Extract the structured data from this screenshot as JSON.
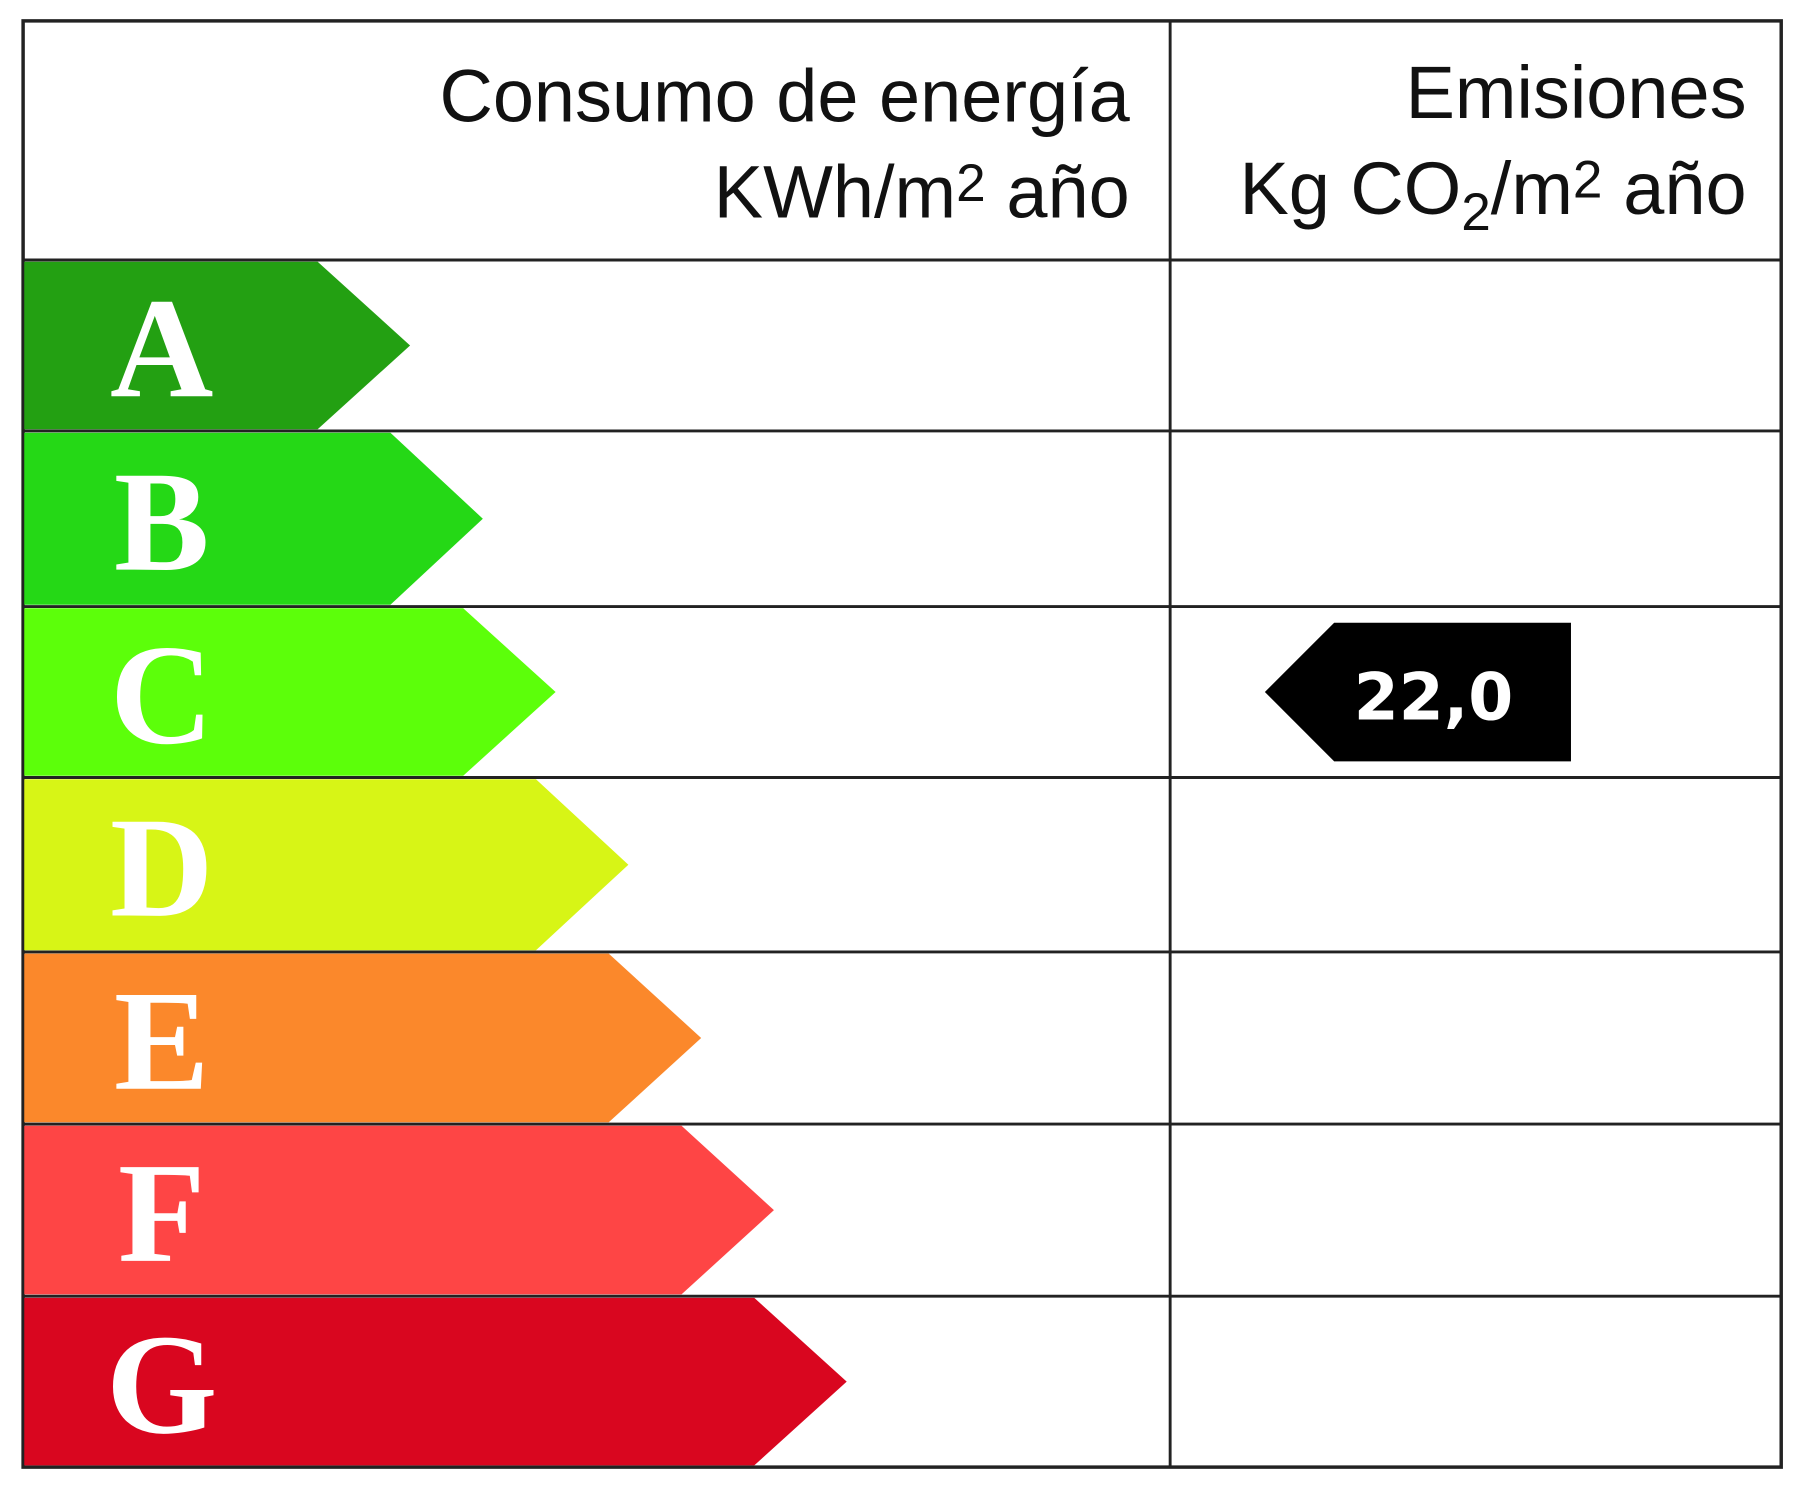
{
  "header": {
    "energy": {
      "title": "Consumo de energía",
      "unit": [
        "KWh/m",
        "2",
        "año"
      ]
    },
    "emissions": {
      "title": "Emisiones",
      "unit": [
        "Kg CO",
        "2",
        "/m",
        "2",
        "año"
      ]
    }
  },
  "ratings": [
    {
      "letter": "A",
      "color": "#23a012"
    },
    {
      "letter": "B",
      "color": "#25d816"
    },
    {
      "letter": "C",
      "color": "#5cff0a"
    },
    {
      "letter": "D",
      "color": "#d7f516"
    },
    {
      "letter": "E",
      "color": "#fb882b"
    },
    {
      "letter": "F",
      "color": "#fe4545"
    },
    {
      "letter": "G",
      "color": "#d9061f"
    }
  ],
  "emissions_value": {
    "rating": "C",
    "label": "22,0"
  }
}
